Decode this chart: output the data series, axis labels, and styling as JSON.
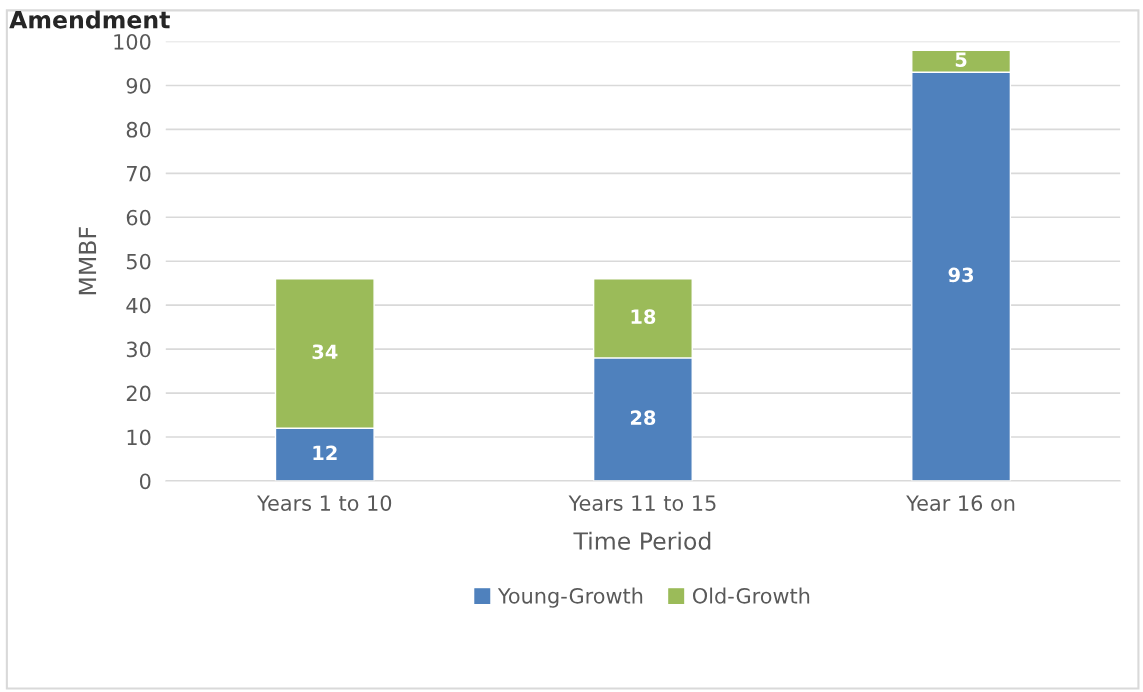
{
  "chart_data": {
    "type": "bar",
    "title": "Amendment",
    "xlabel": "Time Period",
    "ylabel": "MMBF",
    "categories": [
      "Years 1 to 10",
      "Years 11 to 15",
      "Year 16 on"
    ],
    "series": [
      {
        "name": "Young-Growth",
        "color": "#4f81bd",
        "values": [
          12,
          28,
          93
        ]
      },
      {
        "name": "Old-Growth",
        "color": "#9bbb59",
        "values": [
          34,
          18,
          5
        ]
      }
    ],
    "stacked": true,
    "data_labels": true,
    "ylim": [
      0,
      100
    ],
    "yticks": [
      0,
      10,
      20,
      30,
      40,
      50,
      60,
      70,
      80,
      90,
      100
    ],
    "grid": "y",
    "legend": "bottom"
  }
}
